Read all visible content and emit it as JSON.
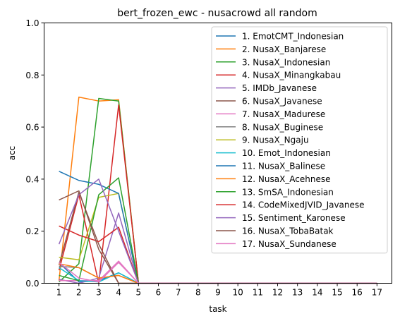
{
  "chart_data": {
    "type": "line",
    "title": "bert_frozen_ewc - nusacrowd all random",
    "xlabel": "task",
    "ylabel": "acc",
    "ylim": [
      0,
      1
    ],
    "xlim": [
      0.25,
      17.75
    ],
    "x": [
      1,
      2,
      3,
      4,
      5,
      6,
      7,
      8,
      9,
      10,
      11,
      12,
      13,
      14,
      15,
      16,
      17
    ],
    "x_ticks": [
      "1",
      "2",
      "3",
      "4",
      "5",
      "6",
      "7",
      "8",
      "9",
      "10",
      "11",
      "12",
      "13",
      "14",
      "15",
      "16",
      "17"
    ],
    "y_ticks": [
      "0.0",
      "0.2",
      "0.4",
      "0.6",
      "0.8",
      "1.0"
    ],
    "legend_position": "right",
    "series": [
      {
        "name": "1. EmotCMT_Indonesian",
        "color": "#1f77b4",
        "values": [
          0.08,
          0.005,
          0.01,
          0.04,
          0,
          0,
          0,
          0,
          0,
          0,
          0,
          0,
          0,
          0,
          0,
          0,
          0
        ]
      },
      {
        "name": "2. NusaX_Banjarese",
        "color": "#ff7f0e",
        "values": [
          0.01,
          0.715,
          0.7,
          0.705,
          0,
          0,
          0,
          0,
          0,
          0,
          0,
          0,
          0,
          0,
          0,
          0,
          0
        ]
      },
      {
        "name": "3. NusaX_Indonesian",
        "color": "#2ca02c",
        "values": [
          0.005,
          0.075,
          0.71,
          0.7,
          0,
          0,
          0,
          0,
          0,
          0,
          0,
          0,
          0,
          0,
          0,
          0,
          0
        ]
      },
      {
        "name": "4. NusaX_Minangkabau",
        "color": "#d62728",
        "values": [
          0.05,
          0.34,
          0.0,
          0.685,
          0,
          0,
          0,
          0,
          0,
          0,
          0,
          0,
          0,
          0,
          0,
          0,
          0
        ]
      },
      {
        "name": "5. IMDb_Javanese",
        "color": "#9467bd",
        "values": [
          0.015,
          0.0,
          0.02,
          0.27,
          0,
          0,
          0,
          0,
          0,
          0,
          0,
          0,
          0,
          0,
          0,
          0,
          0
        ]
      },
      {
        "name": "6. NusaX_Javanese",
        "color": "#8c564b",
        "values": [
          0.07,
          0.35,
          0.15,
          0.0,
          0,
          0,
          0,
          0,
          0,
          0,
          0,
          0,
          0,
          0,
          0,
          0,
          0
        ]
      },
      {
        "name": "7. NusaX_Madurese",
        "color": "#e377c2",
        "values": [
          0.01,
          0.01,
          0.01,
          0.085,
          0,
          0,
          0,
          0,
          0,
          0,
          0,
          0,
          0,
          0,
          0,
          0,
          0
        ]
      },
      {
        "name": "8. NusaX_Buginese",
        "color": "#7f7f7f",
        "values": [
          0.065,
          0.06,
          0.02,
          0.03,
          0,
          0,
          0,
          0,
          0,
          0,
          0,
          0,
          0,
          0,
          0,
          0,
          0
        ]
      },
      {
        "name": "9. NusaX_Ngaju",
        "color": "#bcbd22",
        "values": [
          0.1,
          0.09,
          0.33,
          0.345,
          0,
          0,
          0,
          0,
          0,
          0,
          0,
          0,
          0,
          0,
          0,
          0,
          0
        ]
      },
      {
        "name": "10. Emot_Indonesian",
        "color": "#17becf",
        "values": [
          0.06,
          0.01,
          0.005,
          0.04,
          0,
          0,
          0,
          0,
          0,
          0,
          0,
          0,
          0,
          0,
          0,
          0,
          0
        ]
      },
      {
        "name": "11. NusaX_Balinese",
        "color": "#1f77b4",
        "values": [
          0.43,
          0.395,
          0.38,
          0.345,
          0,
          0,
          0,
          0,
          0,
          0,
          0,
          0,
          0,
          0,
          0,
          0,
          0
        ]
      },
      {
        "name": "12. NusaX_Acehnese",
        "color": "#ff7f0e",
        "values": [
          0.075,
          0.06,
          0.02,
          0.03,
          0,
          0,
          0,
          0,
          0,
          0,
          0,
          0,
          0,
          0,
          0,
          0,
          0
        ]
      },
      {
        "name": "13. SmSA_Indonesian",
        "color": "#2ca02c",
        "values": [
          0.03,
          0.01,
          0.34,
          0.405,
          0,
          0,
          0,
          0,
          0,
          0,
          0,
          0,
          0,
          0,
          0,
          0,
          0
        ]
      },
      {
        "name": "14. CodeMixedJVID_Javanese",
        "color": "#d62728",
        "values": [
          0.22,
          0.185,
          0.16,
          0.215,
          0,
          0,
          0,
          0,
          0,
          0,
          0,
          0,
          0,
          0,
          0,
          0,
          0
        ]
      },
      {
        "name": "15. Sentiment_Karonese",
        "color": "#9467bd",
        "values": [
          0.15,
          0.34,
          0.4,
          0.2,
          0,
          0,
          0,
          0,
          0,
          0,
          0,
          0,
          0,
          0,
          0,
          0,
          0
        ]
      },
      {
        "name": "16. NusaX_TobaBatak",
        "color": "#8c564b",
        "values": [
          0.32,
          0.355,
          0.13,
          0.0,
          0,
          0,
          0,
          0,
          0,
          0,
          0,
          0,
          0,
          0,
          0,
          0,
          0
        ]
      },
      {
        "name": "17. NusaX_Sundanese",
        "color": "#e377c2",
        "values": [
          0.08,
          0.02,
          0.005,
          0.08,
          0,
          0,
          0,
          0,
          0,
          0,
          0,
          0,
          0,
          0,
          0,
          0,
          0
        ]
      }
    ]
  }
}
